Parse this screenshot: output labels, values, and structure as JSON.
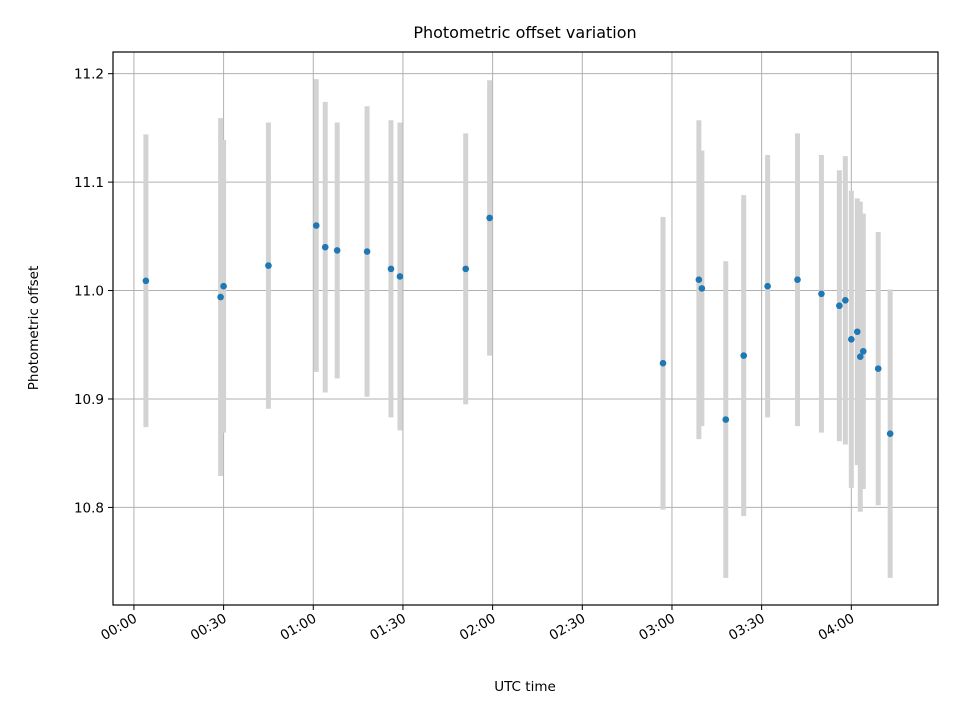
{
  "chart_data": {
    "type": "scatter",
    "title": "Photometric offset variation",
    "xlabel": "UTC time",
    "ylabel": "Photometric offset",
    "grid": true,
    "x_ticks": [
      "00:00",
      "00:30",
      "01:00",
      "01:30",
      "02:00",
      "02:30",
      "03:00",
      "03:30",
      "04:00"
    ],
    "y_ticks": [
      10.8,
      10.9,
      11.0,
      11.1,
      11.2
    ],
    "xlim": [
      "23:53",
      "04:29"
    ],
    "ylim": [
      10.71,
      11.22
    ],
    "colors": {
      "marker": "#1f77b4",
      "errorbar": "#d3d3d3",
      "grid": "#b0b0b0"
    },
    "points": [
      {
        "x": "00:04",
        "y": 11.009,
        "err": 0.135
      },
      {
        "x": "00:29",
        "y": 10.994,
        "err": 0.165
      },
      {
        "x": "00:30",
        "y": 11.004,
        "err": 0.135
      },
      {
        "x": "00:45",
        "y": 11.023,
        "err": 0.132
      },
      {
        "x": "01:01",
        "y": 11.06,
        "err": 0.135
      },
      {
        "x": "01:04",
        "y": 11.04,
        "err": 0.134
      },
      {
        "x": "01:08",
        "y": 11.037,
        "err": 0.118
      },
      {
        "x": "01:18",
        "y": 11.036,
        "err": 0.134
      },
      {
        "x": "01:26",
        "y": 11.02,
        "err": 0.137
      },
      {
        "x": "01:29",
        "y": 11.013,
        "err": 0.142
      },
      {
        "x": "01:51",
        "y": 11.02,
        "err": 0.125
      },
      {
        "x": "01:59",
        "y": 11.067,
        "err": 0.127
      },
      {
        "x": "02:57",
        "y": 10.933,
        "err": 0.135
      },
      {
        "x": "03:09",
        "y": 11.01,
        "err": 0.147
      },
      {
        "x": "03:10",
        "y": 11.002,
        "err": 0.127
      },
      {
        "x": "03:18",
        "y": 10.881,
        "err": 0.146
      },
      {
        "x": "03:24",
        "y": 10.94,
        "err": 0.148
      },
      {
        "x": "03:32",
        "y": 11.004,
        "err": 0.121
      },
      {
        "x": "03:42",
        "y": 11.01,
        "err": 0.135
      },
      {
        "x": "03:50",
        "y": 10.997,
        "err": 0.128
      },
      {
        "x": "03:56",
        "y": 10.986,
        "err": 0.125
      },
      {
        "x": "03:58",
        "y": 10.991,
        "err": 0.133
      },
      {
        "x": "04:00",
        "y": 10.955,
        "err": 0.137
      },
      {
        "x": "04:02",
        "y": 10.962,
        "err": 0.123
      },
      {
        "x": "04:03",
        "y": 10.939,
        "err": 0.143
      },
      {
        "x": "04:04",
        "y": 10.944,
        "err": 0.127
      },
      {
        "x": "04:09",
        "y": 10.928,
        "err": 0.126
      },
      {
        "x": "04:13",
        "y": 10.868,
        "err": 0.133
      }
    ]
  }
}
